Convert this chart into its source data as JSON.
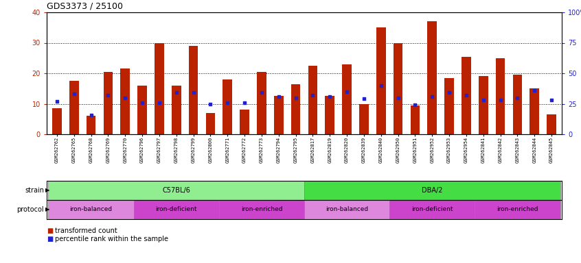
{
  "title": "GDS3373 / 25100",
  "samples": [
    "GSM262762",
    "GSM262765",
    "GSM262768",
    "GSM262769",
    "GSM262770",
    "GSM262796",
    "GSM262797",
    "GSM262798",
    "GSM262799",
    "GSM262800",
    "GSM262771",
    "GSM262772",
    "GSM262773",
    "GSM262794",
    "GSM262795",
    "GSM262817",
    "GSM262819",
    "GSM262820",
    "GSM262839",
    "GSM262840",
    "GSM262950",
    "GSM262951",
    "GSM262952",
    "GSM262953",
    "GSM262954",
    "GSM262841",
    "GSM262842",
    "GSM262843",
    "GSM262844",
    "GSM262845"
  ],
  "red_values": [
    8.5,
    17.5,
    6.0,
    20.5,
    21.5,
    16.0,
    30.0,
    16.0,
    29.0,
    7.0,
    18.0,
    8.0,
    20.5,
    12.5,
    16.5,
    22.5,
    12.5,
    23.0,
    10.0,
    35.0,
    30.0,
    9.5,
    37.0,
    18.5,
    25.5,
    19.0,
    25.0,
    19.5,
    15.0,
    6.5
  ],
  "blue_values_right": [
    27,
    33,
    16,
    32,
    30,
    26,
    26,
    34,
    34,
    25,
    26,
    26,
    34,
    31,
    30,
    32,
    31,
    35,
    29,
    40,
    30,
    24,
    31,
    34,
    32,
    28,
    28,
    30,
    36,
    28
  ],
  "strain_groups": [
    {
      "label": "C57BL/6",
      "start": 0,
      "end": 15,
      "color": "#90EE90"
    },
    {
      "label": "DBA/2",
      "start": 15,
      "end": 30,
      "color": "#44DD44"
    }
  ],
  "protocol_groups": [
    {
      "label": "iron-balanced",
      "start": 0,
      "end": 5,
      "color": "#DD88DD"
    },
    {
      "label": "iron-deficient",
      "start": 5,
      "end": 10,
      "color": "#CC44CC"
    },
    {
      "label": "iron-enriched",
      "start": 10,
      "end": 15,
      "color": "#CC44CC"
    },
    {
      "label": "iron-balanced",
      "start": 15,
      "end": 20,
      "color": "#DD88DD"
    },
    {
      "label": "iron-deficient",
      "start": 20,
      "end": 25,
      "color": "#CC44CC"
    },
    {
      "label": "iron-enriched",
      "start": 25,
      "end": 30,
      "color": "#CC44CC"
    }
  ],
  "ylim_left": [
    0,
    40
  ],
  "ylim_right": [
    0,
    100
  ],
  "yticks_left": [
    0,
    10,
    20,
    30,
    40
  ],
  "yticks_right": [
    0,
    25,
    50,
    75,
    100
  ],
  "bar_color": "#BB2200",
  "blue_color": "#2222CC",
  "bg_color": "#FFFFFF",
  "axis_color_left": "#BB2200",
  "axis_color_right": "#2222CC"
}
